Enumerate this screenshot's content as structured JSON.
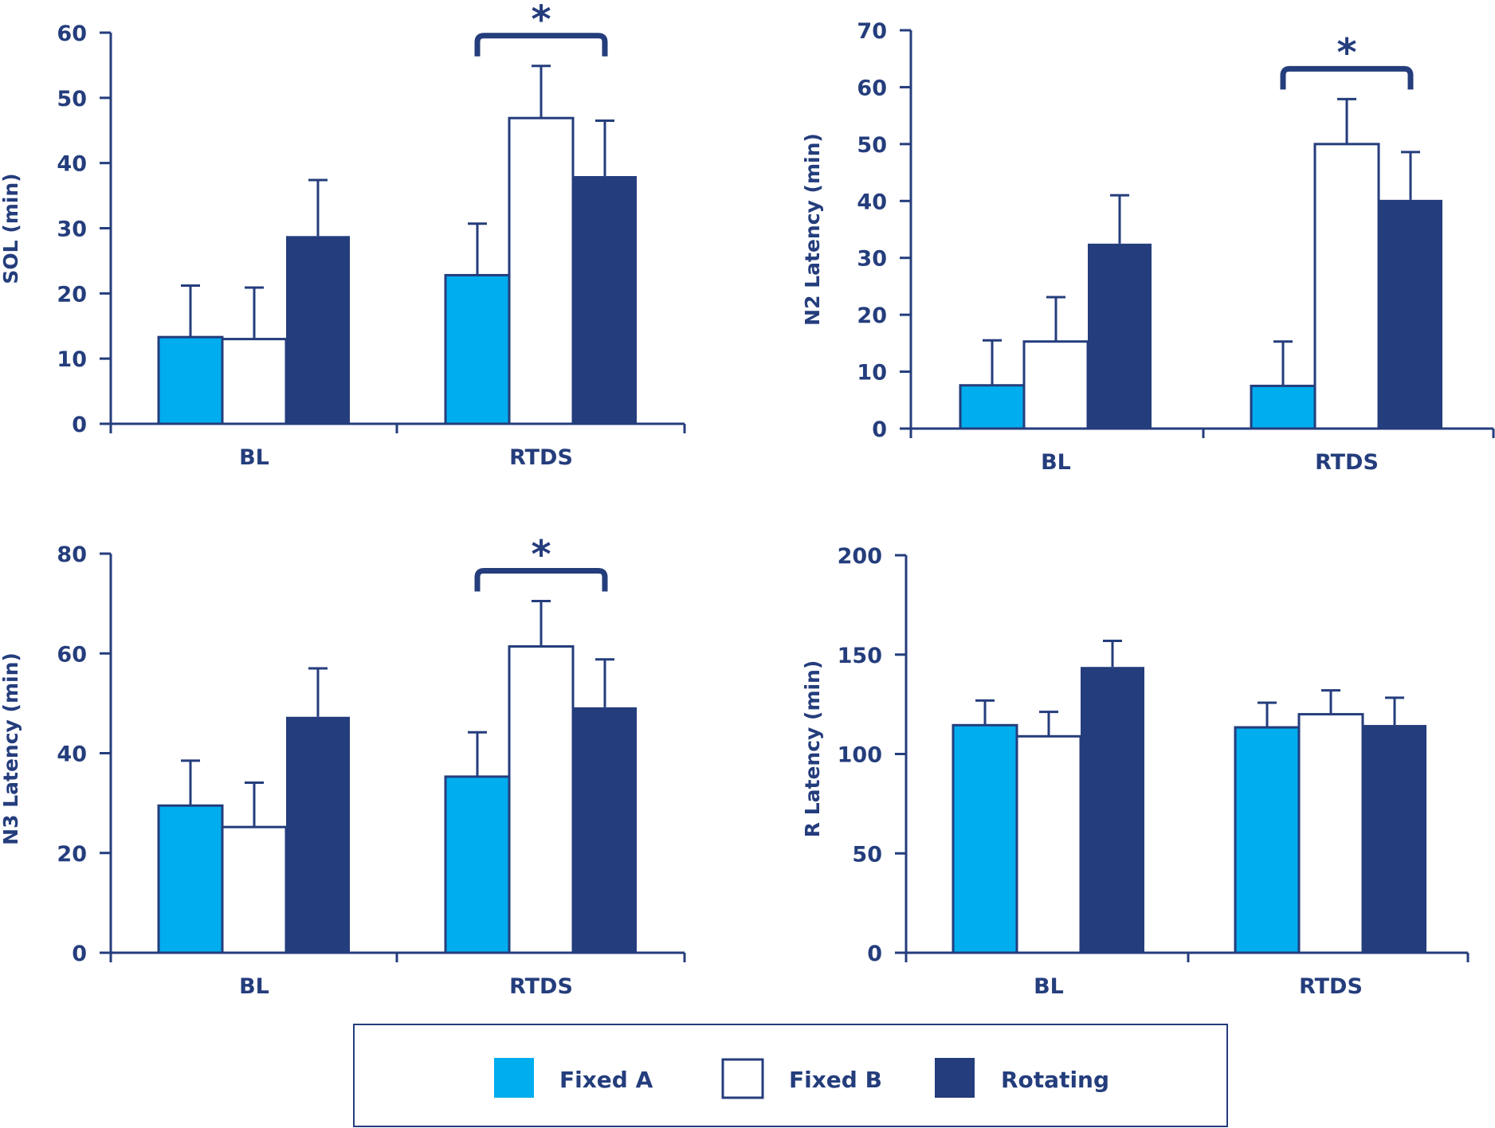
{
  "colors": {
    "fixed_a": "#00adee",
    "fixed_b": "#ffffff",
    "rotating": "#243d7c",
    "axis": "#243d7c",
    "text": "#243d7c"
  },
  "legend": {
    "placement": "bottom-center",
    "items": [
      {
        "label": "Fixed A",
        "key": "fixed_a"
      },
      {
        "label": "Fixed B",
        "key": "fixed_b"
      },
      {
        "label": "Rotating",
        "key": "rotating"
      }
    ]
  },
  "chart_data": [
    {
      "type": "bar",
      "title": "",
      "xlabel": "",
      "ylabel": "SOL (min)",
      "ylim": [
        0,
        60
      ],
      "yticks": [
        0,
        10,
        20,
        30,
        40,
        50,
        60
      ],
      "categories": [
        "BL",
        "RTDS"
      ],
      "series": [
        {
          "name": "Fixed A",
          "values": [
            13.3,
            22.8
          ],
          "error": [
            7.9,
            7.9
          ]
        },
        {
          "name": "Fixed B",
          "values": [
            13.0,
            46.9
          ],
          "error": [
            7.9,
            8.0
          ]
        },
        {
          "name": "Rotating",
          "values": [
            28.8,
            38.0
          ],
          "error": [
            8.6,
            8.5
          ]
        }
      ],
      "annotations": [
        {
          "text": "*",
          "category": "RTDS",
          "spans": [
            "Fixed A",
            "Rotating"
          ]
        }
      ]
    },
    {
      "type": "bar",
      "title": "",
      "xlabel": "",
      "ylabel": "N2 Latency (min)",
      "ylim": [
        0,
        70
      ],
      "yticks": [
        0,
        10,
        20,
        30,
        40,
        50,
        60,
        70
      ],
      "categories": [
        "BL",
        "RTDS"
      ],
      "series": [
        {
          "name": "Fixed A",
          "values": [
            7.6,
            7.5
          ],
          "error": [
            7.9,
            7.8
          ]
        },
        {
          "name": "Fixed B",
          "values": [
            15.3,
            50.0
          ],
          "error": [
            7.8,
            7.9
          ]
        },
        {
          "name": "Rotating",
          "values": [
            32.5,
            40.2
          ],
          "error": [
            8.5,
            8.4
          ]
        }
      ],
      "annotations": [
        {
          "text": "*",
          "category": "RTDS",
          "spans": [
            "Fixed A",
            "Rotating"
          ]
        }
      ]
    },
    {
      "type": "bar",
      "title": "",
      "xlabel": "",
      "ylabel": "N3 Latency (min)",
      "ylim": [
        0,
        80
      ],
      "yticks": [
        0,
        20,
        40,
        60,
        80
      ],
      "categories": [
        "BL",
        "RTDS"
      ],
      "series": [
        {
          "name": "Fixed A",
          "values": [
            29.5,
            35.3
          ],
          "error": [
            9.0,
            8.9
          ]
        },
        {
          "name": "Fixed B",
          "values": [
            25.2,
            61.4
          ],
          "error": [
            8.9,
            9.1
          ]
        },
        {
          "name": "Rotating",
          "values": [
            47.3,
            49.2
          ],
          "error": [
            9.7,
            9.6
          ]
        }
      ],
      "annotations": [
        {
          "text": "*",
          "category": "RTDS",
          "spans": [
            "Fixed A",
            "Rotating"
          ]
        }
      ]
    },
    {
      "type": "bar",
      "title": "",
      "xlabel": "",
      "ylabel": "R Latency (min)",
      "ylim": [
        0,
        200
      ],
      "yticks": [
        0,
        50,
        100,
        150,
        200
      ],
      "categories": [
        "BL",
        "RTDS"
      ],
      "series": [
        {
          "name": "Fixed A",
          "values": [
            114.5,
            113.4
          ],
          "error": [
            12.4,
            12.4
          ]
        },
        {
          "name": "Fixed B",
          "values": [
            108.9,
            120.0
          ],
          "error": [
            12.3,
            12.0
          ]
        },
        {
          "name": "Rotating",
          "values": [
            143.8,
            114.6
          ],
          "error": [
            13.1,
            13.7
          ]
        }
      ],
      "annotations": []
    }
  ]
}
